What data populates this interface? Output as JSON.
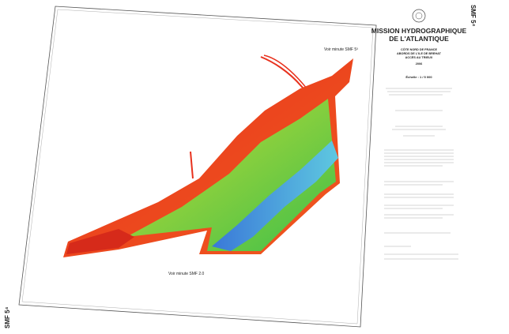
{
  "sheet_id_top": "SMF 5⁴",
  "sheet_id_bottom": "SMF 5⁴",
  "title_block": {
    "title_line1": "MISSION HYDROGRAPHIQUE",
    "title_line2": "DE L'ATLANTIQUE",
    "region": "CÔTE NORD DE FRANCE",
    "area1": "ABORDS DE L'ILE DE BREHAT",
    "area2": "ACCÈS AU TRIEUX",
    "year": "2006",
    "scale": "Échelle : 1 / 5 000"
  },
  "annotations": {
    "north_ref": "Voir minute SMF 5³",
    "south_ref": "Voir minute SMF 2.0"
  }
}
